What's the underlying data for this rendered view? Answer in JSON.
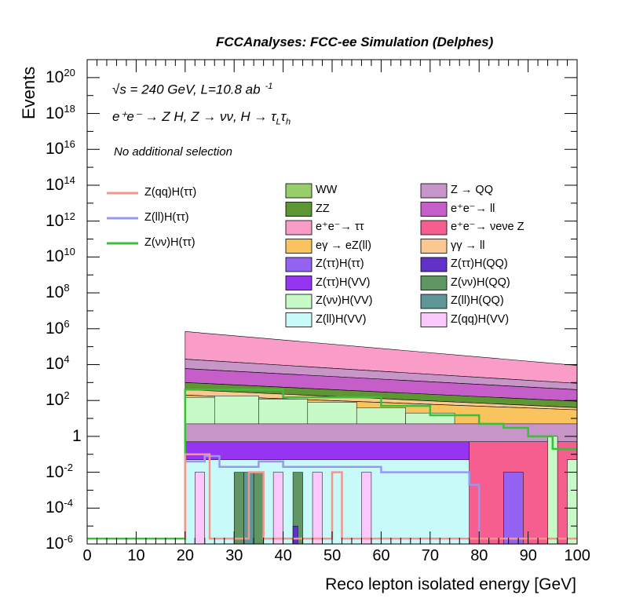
{
  "header": "FCCAnalyses: FCC-ee Simulation (Delphes)",
  "annotations": {
    "energy_lumi": "√s = 240 GeV, L=10.8 ab",
    "lumi_exp": "-1",
    "process": "e⁺e⁻ → Z H, Z → νν, H → τ",
    "proc_sub1": "L",
    "proc_tau2": "τ",
    "proc_sub2": "h",
    "selection": "No additional selection"
  },
  "chart_data": {
    "type": "histogram",
    "xlabel": "Reco lepton isolated energy [GeV]",
    "ylabel": "Events",
    "xlim": [
      0,
      100
    ],
    "ylim": [
      1e-06,
      1e+21
    ],
    "yscale": "log",
    "x_ticks": [
      "0",
      "10",
      "20",
      "30",
      "40",
      "50",
      "60",
      "70",
      "80",
      "90",
      "100"
    ],
    "y_ticks": [
      {
        "base": "10",
        "exp": "20",
        "value": 1e+20
      },
      {
        "base": "10",
        "exp": "18",
        "value": 1e+18
      },
      {
        "base": "10",
        "exp": "16",
        "value": 1e+16
      },
      {
        "base": "10",
        "exp": "14",
        "value": 100000000000000.0
      },
      {
        "base": "10",
        "exp": "12",
        "value": 1000000000000.0
      },
      {
        "base": "10",
        "exp": "10",
        "value": 10000000000.0
      },
      {
        "base": "10",
        "exp": "8",
        "value": 100000000.0
      },
      {
        "base": "10",
        "exp": "6",
        "value": 1000000.0
      },
      {
        "base": "10",
        "exp": "4",
        "value": 10000.0
      },
      {
        "base": "10",
        "exp": "2",
        "value": 100.0
      },
      {
        "base": "1",
        "exp": "",
        "value": 1
      },
      {
        "base": "10",
        "exp": "-2",
        "value": 0.01
      },
      {
        "base": "10",
        "exp": "-4",
        "value": 0.0001
      },
      {
        "base": "10",
        "exp": "-6",
        "value": 1e-06
      }
    ],
    "stack_bands_approx": [
      {
        "name": "e⁺e⁻→ ττ",
        "color": "#f99cc8",
        "top_at_20": 700000,
        "top_at_100": 9000
      },
      {
        "name": "Z → QQ",
        "color": "#c895c8",
        "top_at_20": 20000,
        "top_at_100": 900
      },
      {
        "name": "e⁺e⁻→ ll",
        "color": "#c55ec8",
        "top_at_20": 6000,
        "top_at_100": 400
      },
      {
        "name": "ZZ",
        "color": "#5f9634",
        "top_at_20": 1000,
        "top_at_100": 90
      },
      {
        "name": "γγ → ll",
        "color": "#fbc891",
        "top_at_20": 400,
        "top_at_100": 40
      },
      {
        "name": "eγ → eZ(ll)",
        "color": "#f9c35e",
        "top_at_20": 200,
        "top_at_100": 30
      }
    ],
    "signal_lines": [
      {
        "name": "Z(qq)H(ττ)",
        "color": "#f4958e"
      },
      {
        "name": "Z(ll)H(ττ)",
        "color": "#9898f2"
      },
      {
        "name": "Z(νν)H(ττ)",
        "color": "#3bbf3b"
      }
    ],
    "legend_signals": [
      "Z(qq)H(ττ)",
      "Z(ll)H(ττ)",
      "Z(νν)H(ττ)"
    ],
    "legend_backgrounds": [
      {
        "name": "WW",
        "color": "#98ce69"
      },
      {
        "name": "Z → QQ",
        "color": "#c895c8"
      },
      {
        "name": "ZZ",
        "color": "#5f9634"
      },
      {
        "name": "e⁺e⁻→ ll",
        "color": "#c55ec8"
      },
      {
        "name": "e⁺e⁻→ ττ",
        "color": "#f99cc8"
      },
      {
        "name": "e⁺e⁻→ νeνe Z",
        "color": "#f55e8e"
      },
      {
        "name": "eγ → eZ(ll)",
        "color": "#f9c35e"
      },
      {
        "name": "γγ → ll",
        "color": "#fbc891"
      },
      {
        "name": "Z(ττ)H(ττ)",
        "color": "#9563f2"
      },
      {
        "name": "Z(ττ)H(QQ)",
        "color": "#6032c8"
      },
      {
        "name": "Z(ττ)H(VV)",
        "color": "#9535f2"
      },
      {
        "name": "Z(νν)H(QQ)",
        "color": "#5f9664"
      },
      {
        "name": "Z(νν)H(VV)",
        "color": "#c8fac8"
      },
      {
        "name": "Z(ll)H(QQ)",
        "color": "#5f9696"
      },
      {
        "name": "Z(ll)H(VV)",
        "color": "#c8fafa"
      },
      {
        "name": "Z(qq)H(VV)",
        "color": "#fac8fa"
      }
    ]
  }
}
